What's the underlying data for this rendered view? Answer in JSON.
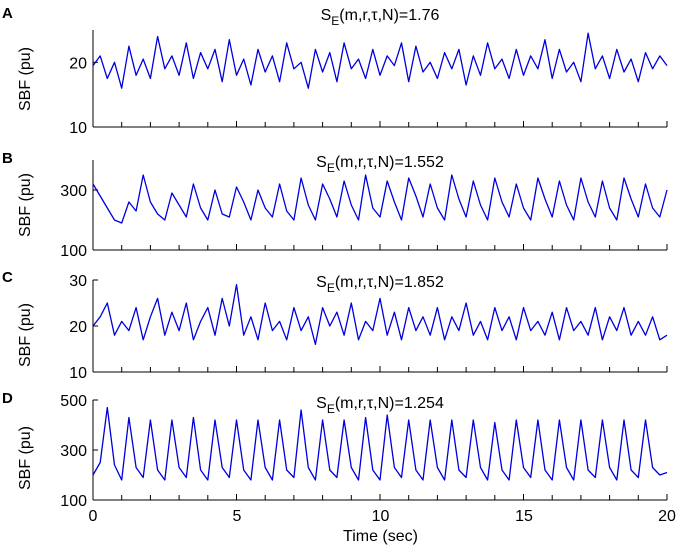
{
  "figure": {
    "xlabel": "Time (sec)",
    "x_tick_labels": [
      "0",
      "5",
      "10",
      "15",
      "20"
    ],
    "ylabel": "SBF (pu)"
  },
  "colors": {
    "trace": "#0000dd",
    "axis": "#000000"
  },
  "chart_data": [
    {
      "type": "line",
      "panel_label": "A",
      "title_prefix": "S",
      "title_sub": "E",
      "title_rest": "(m,r,τ,N)=1.76",
      "ylabel": "SBF (pu)",
      "xlim": [
        0,
        20
      ],
      "ylim": [
        10,
        25
      ],
      "y_ticks": [
        10,
        20
      ],
      "y_tick_labels": [
        "10",
        "20"
      ],
      "grid": false,
      "x": [
        0,
        0.25,
        0.5,
        0.75,
        1,
        1.25,
        1.5,
        1.75,
        2,
        2.25,
        2.5,
        2.75,
        3,
        3.25,
        3.5,
        3.75,
        4,
        4.25,
        4.5,
        4.75,
        5,
        5.25,
        5.5,
        5.75,
        6,
        6.25,
        6.5,
        6.75,
        7,
        7.25,
        7.5,
        7.75,
        8,
        8.25,
        8.5,
        8.75,
        9,
        9.25,
        9.5,
        9.75,
        10,
        10.25,
        10.5,
        10.75,
        11,
        11.25,
        11.5,
        11.75,
        12,
        12.25,
        12.5,
        12.75,
        13,
        13.25,
        13.5,
        13.75,
        14,
        14.25,
        14.5,
        14.75,
        15,
        15.25,
        15.5,
        15.75,
        16,
        16.25,
        16.5,
        16.75,
        17,
        17.25,
        17.5,
        17.75,
        18,
        18.25,
        18.5,
        18.75,
        19,
        19.25,
        19.5,
        19.75,
        20
      ],
      "values": [
        19.5,
        21,
        17.5,
        20,
        16,
        22.5,
        18,
        20.5,
        17.5,
        24,
        19,
        21,
        18,
        23,
        17.5,
        21.5,
        19,
        22,
        17,
        23.5,
        18,
        20.5,
        16.5,
        22,
        18.5,
        21,
        17,
        23,
        19,
        20,
        16,
        22,
        18.5,
        21.5,
        17,
        23,
        19,
        20.5,
        17.5,
        22,
        18,
        21,
        19.5,
        23,
        17,
        22.5,
        18.5,
        20,
        17.5,
        21.5,
        19,
        22,
        16.5,
        21,
        18,
        23,
        19,
        20.5,
        17.5,
        22,
        18,
        21,
        19,
        23.5,
        17.5,
        22,
        18.5,
        20,
        17,
        24.5,
        19,
        21,
        17.5,
        22,
        18.5,
        20.5,
        17,
        21.5,
        19,
        21,
        19.5
      ]
    },
    {
      "type": "line",
      "panel_label": "B",
      "title_prefix": "S",
      "title_sub": "E",
      "title_rest": "(m,r,τ,N)=1.552",
      "ylabel": "SBF (pu)",
      "xlim": [
        0,
        20
      ],
      "ylim": [
        100,
        400
      ],
      "y_ticks": [
        100,
        300
      ],
      "y_tick_labels": [
        "100",
        "300"
      ],
      "grid": false,
      "x": [
        0,
        0.25,
        0.5,
        0.75,
        1,
        1.25,
        1.5,
        1.75,
        2,
        2.25,
        2.5,
        2.75,
        3,
        3.25,
        3.5,
        3.75,
        4,
        4.25,
        4.5,
        4.75,
        5,
        5.25,
        5.5,
        5.75,
        6,
        6.25,
        6.5,
        6.75,
        7,
        7.25,
        7.5,
        7.75,
        8,
        8.25,
        8.5,
        8.75,
        9,
        9.25,
        9.5,
        9.75,
        10,
        10.25,
        10.5,
        10.75,
        11,
        11.25,
        11.5,
        11.75,
        12,
        12.25,
        12.5,
        12.75,
        13,
        13.25,
        13.5,
        13.75,
        14,
        14.25,
        14.5,
        14.75,
        15,
        15.25,
        15.5,
        15.75,
        16,
        16.25,
        16.5,
        16.75,
        17,
        17.25,
        17.5,
        17.75,
        18,
        18.25,
        18.5,
        18.75,
        19,
        19.25,
        19.5,
        19.75,
        20
      ],
      "values": [
        320,
        280,
        240,
        200,
        190,
        260,
        230,
        350,
        260,
        220,
        200,
        290,
        250,
        210,
        320,
        240,
        200,
        300,
        220,
        210,
        310,
        260,
        200,
        300,
        240,
        210,
        320,
        230,
        200,
        340,
        250,
        200,
        320,
        270,
        210,
        330,
        250,
        200,
        350,
        240,
        210,
        330,
        260,
        200,
        340,
        280,
        210,
        320,
        240,
        200,
        350,
        270,
        210,
        330,
        250,
        200,
        340,
        260,
        210,
        320,
        240,
        200,
        340,
        270,
        210,
        330,
        250,
        200,
        340,
        260,
        210,
        330,
        240,
        200,
        340,
        270,
        210,
        320,
        240,
        210,
        300
      ]
    },
    {
      "type": "line",
      "panel_label": "C",
      "title_prefix": "S",
      "title_sub": "E",
      "title_rest": "(m,r,τ,N)=1.852",
      "ylabel": "SBF (pu)",
      "xlim": [
        0,
        20
      ],
      "ylim": [
        10,
        30
      ],
      "y_ticks": [
        10,
        20,
        30
      ],
      "y_tick_labels": [
        "10",
        "20",
        "30"
      ],
      "grid": false,
      "x": [
        0,
        0.25,
        0.5,
        0.75,
        1,
        1.25,
        1.5,
        1.75,
        2,
        2.25,
        2.5,
        2.75,
        3,
        3.25,
        3.5,
        3.75,
        4,
        4.25,
        4.5,
        4.75,
        5,
        5.25,
        5.5,
        5.75,
        6,
        6.25,
        6.5,
        6.75,
        7,
        7.25,
        7.5,
        7.75,
        8,
        8.25,
        8.5,
        8.75,
        9,
        9.25,
        9.5,
        9.75,
        10,
        10.25,
        10.5,
        10.75,
        11,
        11.25,
        11.5,
        11.75,
        12,
        12.25,
        12.5,
        12.75,
        13,
        13.25,
        13.5,
        13.75,
        14,
        14.25,
        14.5,
        14.75,
        15,
        15.25,
        15.5,
        15.75,
        16,
        16.25,
        16.5,
        16.75,
        17,
        17.25,
        17.5,
        17.75,
        18,
        18.25,
        18.5,
        18.75,
        19,
        19.25,
        19.5,
        19.75,
        20
      ],
      "values": [
        20,
        22,
        25,
        18,
        21,
        19,
        24,
        17,
        22,
        26,
        18,
        23,
        19,
        25,
        17,
        21,
        24,
        18,
        26,
        20,
        29,
        18,
        22,
        17,
        25,
        19,
        21,
        17,
        24,
        19,
        22,
        16,
        24,
        20,
        23,
        18,
        25,
        17,
        21,
        19,
        26,
        18,
        23,
        17,
        24,
        19,
        22,
        18,
        24,
        17,
        22,
        19,
        25,
        18,
        21,
        17,
        24,
        19,
        22,
        17,
        24,
        19,
        21,
        18,
        23,
        17,
        24,
        19,
        21,
        18,
        24,
        17,
        22,
        19,
        24,
        18,
        21,
        18,
        22,
        17,
        18
      ]
    },
    {
      "type": "line",
      "panel_label": "D",
      "title_prefix": "S",
      "title_sub": "E",
      "title_rest": "(m,r,τ,N)=1.254",
      "ylabel": "SBF (pu)",
      "xlim": [
        0,
        20
      ],
      "ylim": [
        100,
        500
      ],
      "y_ticks": [
        100,
        300,
        500
      ],
      "y_tick_labels": [
        "100",
        "300",
        "500"
      ],
      "grid": false,
      "x": [
        0,
        0.25,
        0.5,
        0.75,
        1,
        1.25,
        1.5,
        1.75,
        2,
        2.25,
        2.5,
        2.75,
        3,
        3.25,
        3.5,
        3.75,
        4,
        4.25,
        4.5,
        4.75,
        5,
        5.25,
        5.5,
        5.75,
        6,
        6.25,
        6.5,
        6.75,
        7,
        7.25,
        7.5,
        7.75,
        8,
        8.25,
        8.5,
        8.75,
        9,
        9.25,
        9.5,
        9.75,
        10,
        10.25,
        10.5,
        10.75,
        11,
        11.25,
        11.5,
        11.75,
        12,
        12.25,
        12.5,
        12.75,
        13,
        13.25,
        13.5,
        13.75,
        14,
        14.25,
        14.5,
        14.75,
        15,
        15.25,
        15.5,
        15.75,
        16,
        16.25,
        16.5,
        16.75,
        17,
        17.25,
        17.5,
        17.75,
        18,
        18.25,
        18.5,
        18.75,
        19,
        19.25,
        19.5,
        19.75,
        20
      ],
      "values": [
        200,
        250,
        470,
        240,
        180,
        430,
        230,
        190,
        420,
        220,
        180,
        420,
        230,
        190,
        430,
        220,
        180,
        420,
        230,
        190,
        420,
        220,
        180,
        420,
        230,
        180,
        420,
        220,
        190,
        460,
        230,
        180,
        420,
        220,
        190,
        420,
        230,
        180,
        430,
        220,
        180,
        440,
        230,
        190,
        420,
        220,
        180,
        420,
        230,
        180,
        420,
        220,
        190,
        420,
        230,
        180,
        410,
        220,
        180,
        420,
        230,
        190,
        420,
        220,
        180,
        420,
        230,
        180,
        420,
        220,
        190,
        420,
        230,
        180,
        420,
        220,
        190,
        420,
        230,
        200,
        210
      ]
    }
  ]
}
